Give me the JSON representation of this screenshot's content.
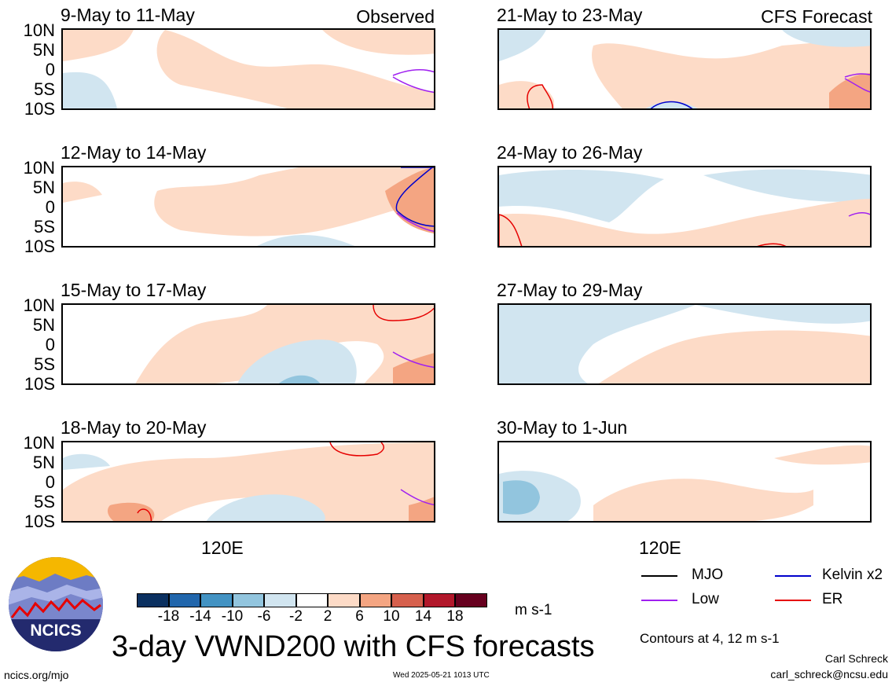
{
  "observed_label": "Observed",
  "forecast_label": "CFS Forecast",
  "lat_labels": [
    "10N",
    "5N",
    "0",
    "5S",
    "10S"
  ],
  "lon_label": "120E",
  "observed_panels": [
    {
      "title": "9-May to 11-May"
    },
    {
      "title": "12-May to 14-May"
    },
    {
      "title": "15-May to 17-May"
    },
    {
      "title": "18-May to 20-May"
    }
  ],
  "forecast_panels": [
    {
      "title": "21-May to 23-May"
    },
    {
      "title": "24-May to 26-May"
    },
    {
      "title": "27-May to 29-May"
    },
    {
      "title": "30-May to 1-Jun"
    }
  ],
  "colorbar": {
    "colors": [
      "#0b3060",
      "#2166ac",
      "#4393c3",
      "#92c5de",
      "#d1e5f0",
      "#ffffff",
      "#fddbc7",
      "#f4a582",
      "#d6604d",
      "#b2182b",
      "#67001f"
    ],
    "ticks": [
      "-18",
      "-14",
      "-10",
      "-6",
      "-2",
      "2",
      "6",
      "10",
      "14",
      "18"
    ],
    "units": "m s-1"
  },
  "legend": {
    "items": [
      {
        "label": "MJO",
        "color": "#000000"
      },
      {
        "label": "Kelvin x2",
        "color": "#0000cc"
      },
      {
        "label": "Low",
        "color": "#a020f0"
      },
      {
        "label": "ER",
        "color": "#e60000"
      }
    ],
    "contours_note": "Contours at 4, 12 m s-1"
  },
  "logo_text": "NCICS",
  "main_title": "3-day VWND200 with CFS forecasts",
  "author": "Carl Schreck",
  "email": "carl_schreck@ncsu.edu",
  "website": "ncics.org/mjo",
  "timestamp": "Wed 2025-05-21 1013 UTC",
  "colors": {
    "pos_light": "#fddbc7",
    "pos_mid": "#f4a582",
    "neg_light": "#d1e5f0",
    "neg_mid": "#92c5de",
    "coast": "#555555"
  }
}
